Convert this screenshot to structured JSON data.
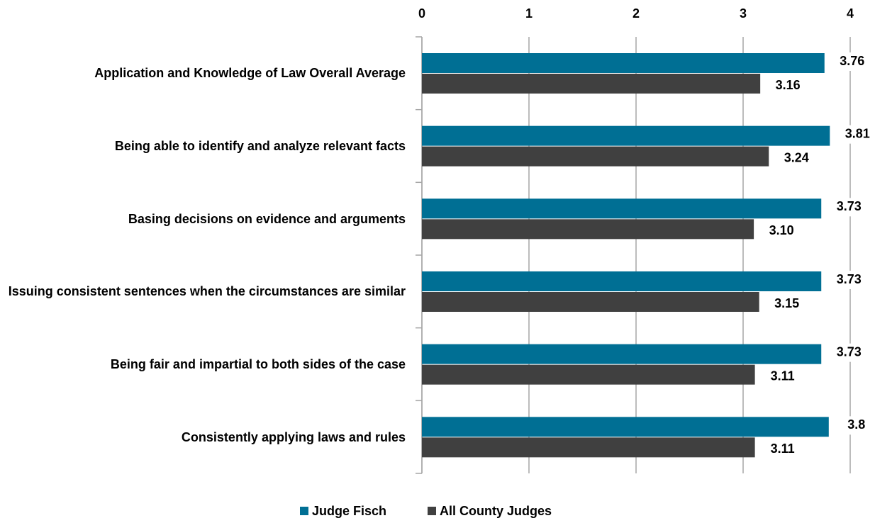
{
  "chart_data": {
    "type": "bar",
    "orientation": "horizontal",
    "categories": [
      "Application and Knowledge of Law Overall Average",
      "Being able to identify and analyze relevant facts",
      "Basing decisions on evidence and arguments",
      "Issuing consistent sentences when the circumstances are similar",
      "Being fair and impartial to both sides of the case",
      "Consistently applying laws and rules"
    ],
    "series": [
      {
        "name": "Judge Fisch",
        "color": "#006f94",
        "values": [
          3.76,
          3.81,
          3.73,
          3.73,
          3.73,
          3.8
        ]
      },
      {
        "name": "All County Judges",
        "color": "#404040",
        "values": [
          3.16,
          3.24,
          3.1,
          3.15,
          3.11,
          3.11
        ],
        "value_labels": [
          "3.16",
          "3.24",
          "3.10",
          "3.15",
          "3.11",
          "3.11"
        ]
      }
    ],
    "xlim": [
      0,
      4
    ],
    "xticks": [
      0,
      1,
      2,
      3,
      4
    ],
    "grid": true,
    "legend": "bottom"
  }
}
